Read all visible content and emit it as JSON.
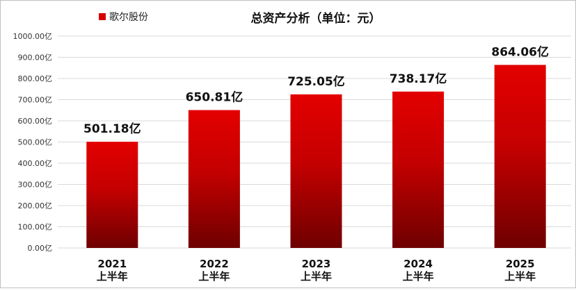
{
  "chart_data": {
    "type": "bar",
    "title": "总资产分析（单位：元）",
    "categories": [
      [
        "2021",
        "上半年"
      ],
      [
        "2022",
        "上半年"
      ],
      [
        "2023",
        "上半年"
      ],
      [
        "2024",
        "上半年"
      ],
      [
        "2025",
        "上半年"
      ]
    ],
    "series": [
      {
        "name": "歌尔股份",
        "values": [
          501.18,
          650.81,
          725.05,
          738.17,
          864.06
        ],
        "data_labels": [
          "501.18亿",
          "650.81亿",
          "725.05亿",
          "738.17亿",
          "864.06亿"
        ]
      }
    ],
    "ylim": [
      0,
      1000
    ],
    "yticks": [
      0,
      100,
      200,
      300,
      400,
      500,
      600,
      700,
      800,
      900,
      1000
    ],
    "ytick_labels": [
      "0.00亿",
      "100.00亿",
      "200.00亿",
      "300.00亿",
      "400.00亿",
      "500.00亿",
      "600.00亿",
      "700.00亿",
      "800.00亿",
      "900.00亿",
      "1000.00亿"
    ],
    "grid": true,
    "legend_position": "top-left",
    "colors": {
      "bar_top": "#e30000",
      "bar_mid": "#c40000",
      "bar_bottom": "#6e0000",
      "legend_swatch": "#d60000",
      "grid": "#d9d9d9"
    }
  }
}
